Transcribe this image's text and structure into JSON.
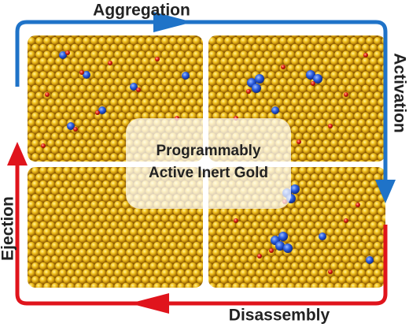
{
  "labels": {
    "top": "Aggregation",
    "right": "Activation",
    "bottom": "Disassembly",
    "left": "Ejection"
  },
  "center": {
    "line1": "Programmably",
    "line2": "Active Inert Gold"
  }
}
